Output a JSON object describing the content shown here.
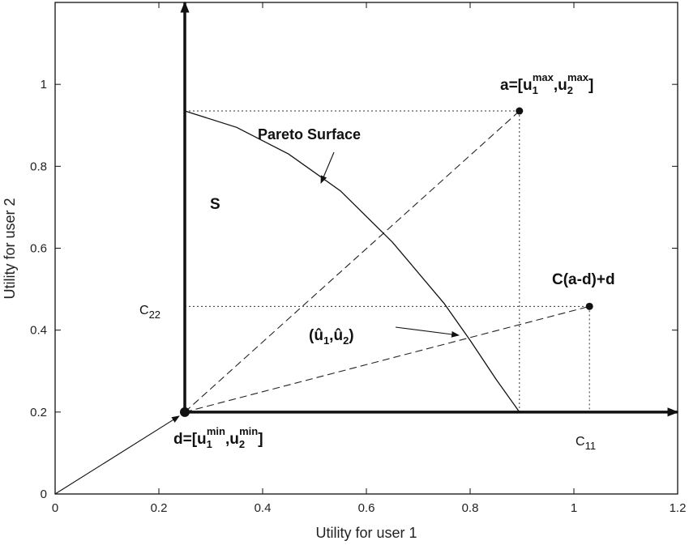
{
  "chart_data": {
    "type": "line",
    "xlabel": "Utility for user 1",
    "ylabel": "Utility for user 2",
    "xlim": [
      0,
      1.2
    ],
    "ylim": [
      0,
      1.2
    ],
    "xticks": [
      "0",
      "0.2",
      "0.4",
      "0.6",
      "0.8",
      "1",
      "1.2"
    ],
    "yticks": [
      "0",
      "0.2",
      "0.4",
      "0.6",
      "0.8",
      "1"
    ],
    "grid": false,
    "pareto_surface": {
      "x": [
        0.25,
        0.35,
        0.45,
        0.55,
        0.65,
        0.75,
        0.8,
        0.85,
        0.895
      ],
      "y": [
        0.935,
        0.895,
        0.83,
        0.74,
        0.615,
        0.465,
        0.375,
        0.28,
        0.2
      ]
    },
    "points": {
      "d": [
        0.25,
        0.2
      ],
      "a": [
        0.895,
        0.935
      ],
      "cad": [
        1.03,
        0.458
      ]
    },
    "region_axes": {
      "vertical": {
        "x": 0.25,
        "y": [
          0.2,
          1.2
        ]
      },
      "horizontal": {
        "y": 0.2,
        "x": [
          0.25,
          1.2
        ]
      }
    },
    "annotations": {
      "pareto_label": "Pareto Surface",
      "s_label": "S",
      "a_label_prefix": "a=[u",
      "a_sub1": "1",
      "a_sup1": "max",
      "a_mid": ",u",
      "a_sub2": "2",
      "a_sup2": "max",
      "a_suffix": "]",
      "d_label_prefix": "d=[u",
      "d_sub1": "1",
      "d_sup1": "min",
      "d_mid": ",u",
      "d_sub2": "2",
      "d_sup2": "min",
      "d_suffix": "]",
      "cad_label": "C(a-d)+d",
      "c22_main": "C",
      "c22_sub": "22",
      "c11_main": "C",
      "c11_sub": "11",
      "uhat_open": "(",
      "uhat_u1": "û",
      "uhat_sub1": "1",
      "uhat_comma": ",",
      "uhat_u2": "û",
      "uhat_sub2": "2",
      "uhat_close": ")"
    }
  }
}
